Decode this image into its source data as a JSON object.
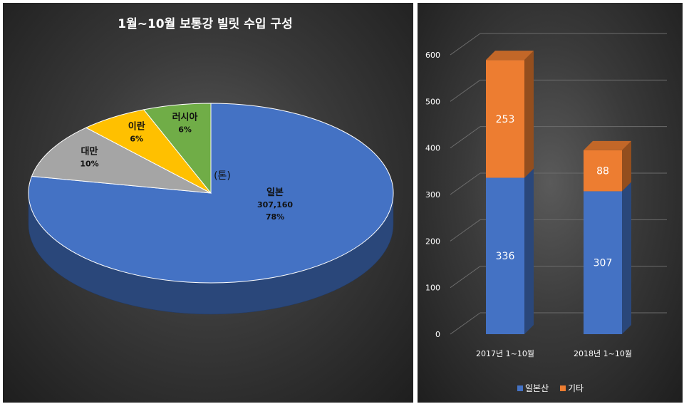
{
  "chart_data": [
    {
      "type": "pie",
      "title": "1월~10월 보통강 빌릿 수입 구성",
      "unit_label": "(톤)",
      "categories": [
        "일본",
        "대만",
        "이란",
        "러시아"
      ],
      "values": [
        78,
        10,
        6,
        6
      ],
      "value_labels": [
        "307,160",
        "",
        "",
        ""
      ],
      "percent_labels": [
        "78%",
        "10%",
        "6%",
        "6%"
      ],
      "colors": [
        "#4472c4",
        "#a5a5a5",
        "#ffc000",
        "#70ad47"
      ]
    },
    {
      "type": "bar",
      "stacked": true,
      "categories": [
        "2017년 1~10월",
        "2018년 1~10월"
      ],
      "series": [
        {
          "name": "일본산",
          "values": [
            336,
            307
          ],
          "color": "#4472c4"
        },
        {
          "name": "기타",
          "values": [
            253,
            88
          ],
          "color": "#ed7d31"
        }
      ],
      "ylim": [
        0,
        600
      ],
      "yticks": [
        0,
        100,
        200,
        300,
        400,
        500,
        600
      ],
      "grid": true,
      "legend_position": "bottom"
    }
  ]
}
